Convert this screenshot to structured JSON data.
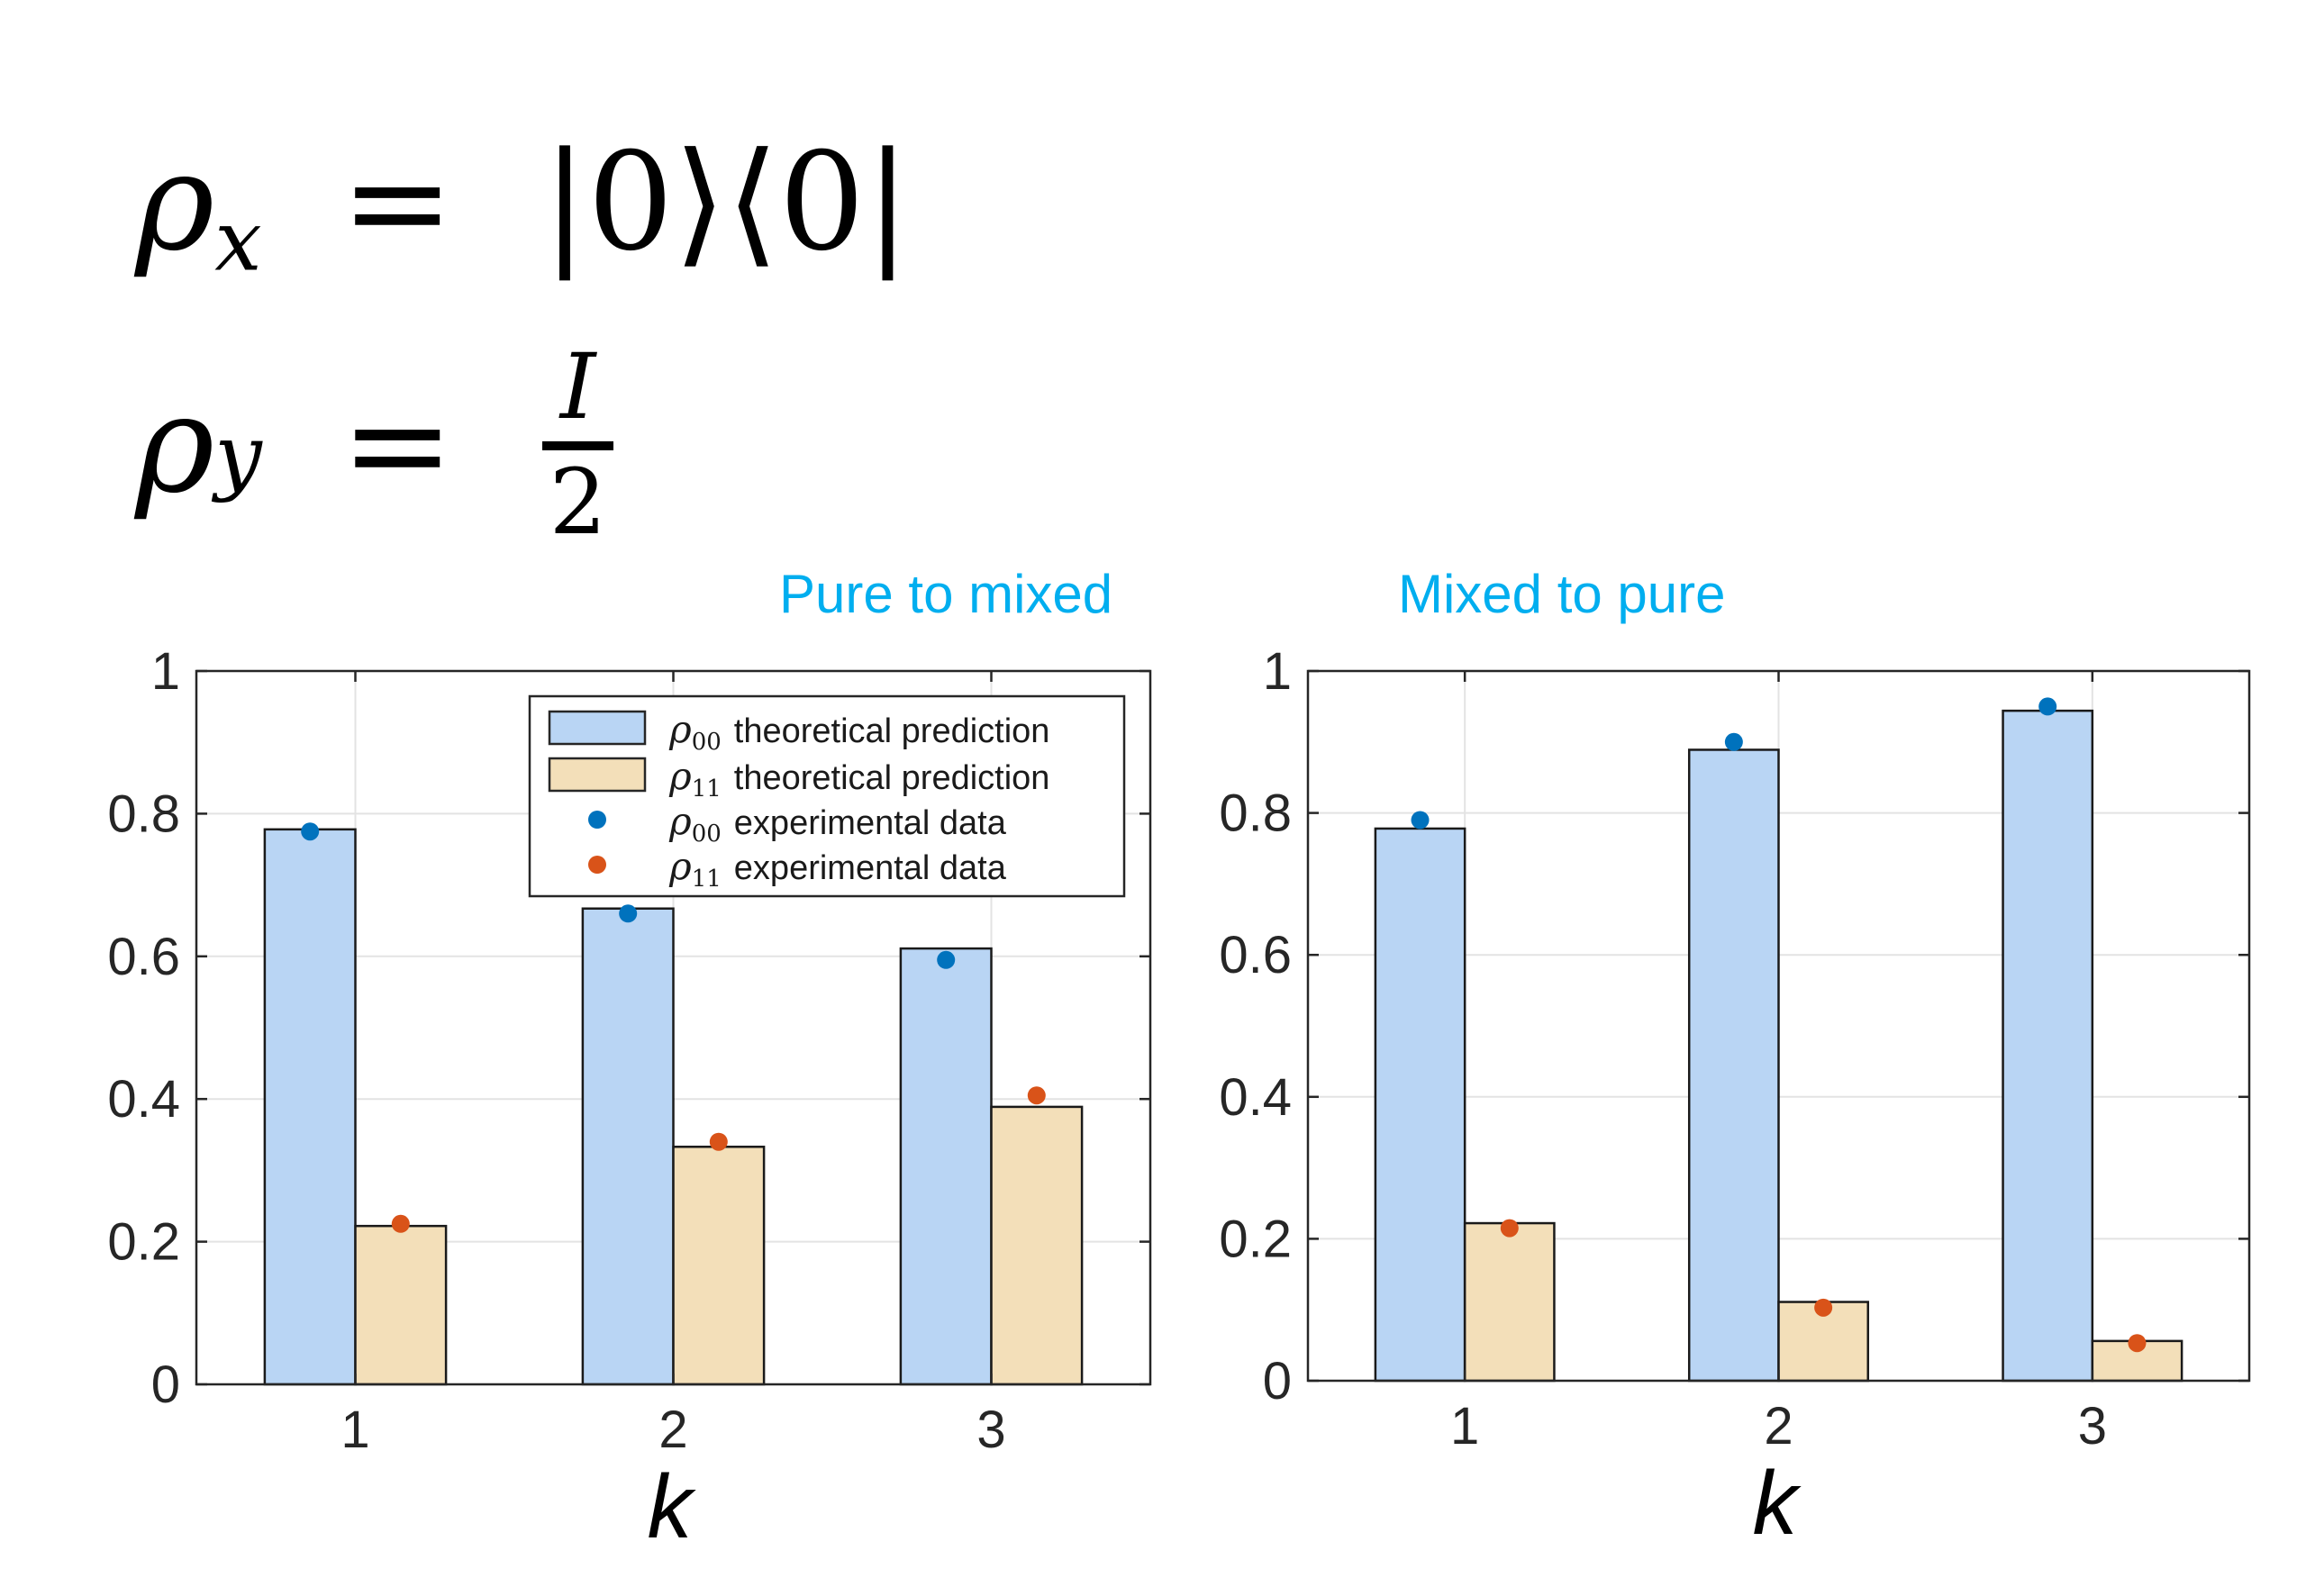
{
  "equations": [
    {
      "lhs": "ρ",
      "sub": "x",
      "op": "=",
      "rhs": "|0⟩⟨0|"
    },
    {
      "lhs": "ρ",
      "sub": "y",
      "op": "=",
      "num": "I",
      "den": "2"
    }
  ],
  "chart_data": [
    {
      "type": "bar",
      "title": "Pure to mixed",
      "xlabel": "k",
      "ylabel": "",
      "categories": [
        "1",
        "2",
        "3"
      ],
      "ylim": [
        0,
        1
      ],
      "yticks": [
        "0",
        "0.2",
        "0.4",
        "0.6",
        "0.8",
        "1"
      ],
      "grid": true,
      "legend_position": "top-right",
      "legend": [
        {
          "symbol": "ρ",
          "sub": "00",
          "text": "theoretical prediction"
        },
        {
          "symbol": "ρ",
          "sub": "11",
          "text": "theoretical prediction"
        },
        {
          "symbol": "ρ",
          "sub": "00",
          "text": "experimental data"
        },
        {
          "symbol": "ρ",
          "sub": "11",
          "text": "experimental data"
        }
      ],
      "series": [
        {
          "type": "bar",
          "values": [
            0.778,
            0.667,
            0.611
          ],
          "color": "#b9d5f4"
        },
        {
          "type": "bar",
          "values": [
            0.222,
            0.333,
            0.389
          ],
          "color": "#f3dfb9"
        },
        {
          "type": "scatter",
          "values": [
            0.775,
            0.66,
            0.595
          ],
          "color": "#0072bd"
        },
        {
          "type": "scatter",
          "values": [
            0.225,
            0.34,
            0.405
          ],
          "color": "#d95319"
        }
      ]
    },
    {
      "type": "bar",
      "title": "Mixed to pure",
      "xlabel": "k",
      "ylabel": "",
      "categories": [
        "1",
        "2",
        "3"
      ],
      "ylim": [
        0,
        1
      ],
      "yticks": [
        "0",
        "0.2",
        "0.4",
        "0.6",
        "0.8",
        "1"
      ],
      "grid": true,
      "series": [
        {
          "type": "bar",
          "values": [
            0.778,
            0.889,
            0.944
          ],
          "color": "#b9d5f4"
        },
        {
          "type": "bar",
          "values": [
            0.222,
            0.111,
            0.056
          ],
          "color": "#f3dfb9"
        },
        {
          "type": "scatter",
          "values": [
            0.79,
            0.9,
            0.95
          ],
          "color": "#0072bd"
        },
        {
          "type": "scatter",
          "values": [
            0.215,
            0.103,
            0.053
          ],
          "color": "#d95319"
        }
      ]
    }
  ]
}
